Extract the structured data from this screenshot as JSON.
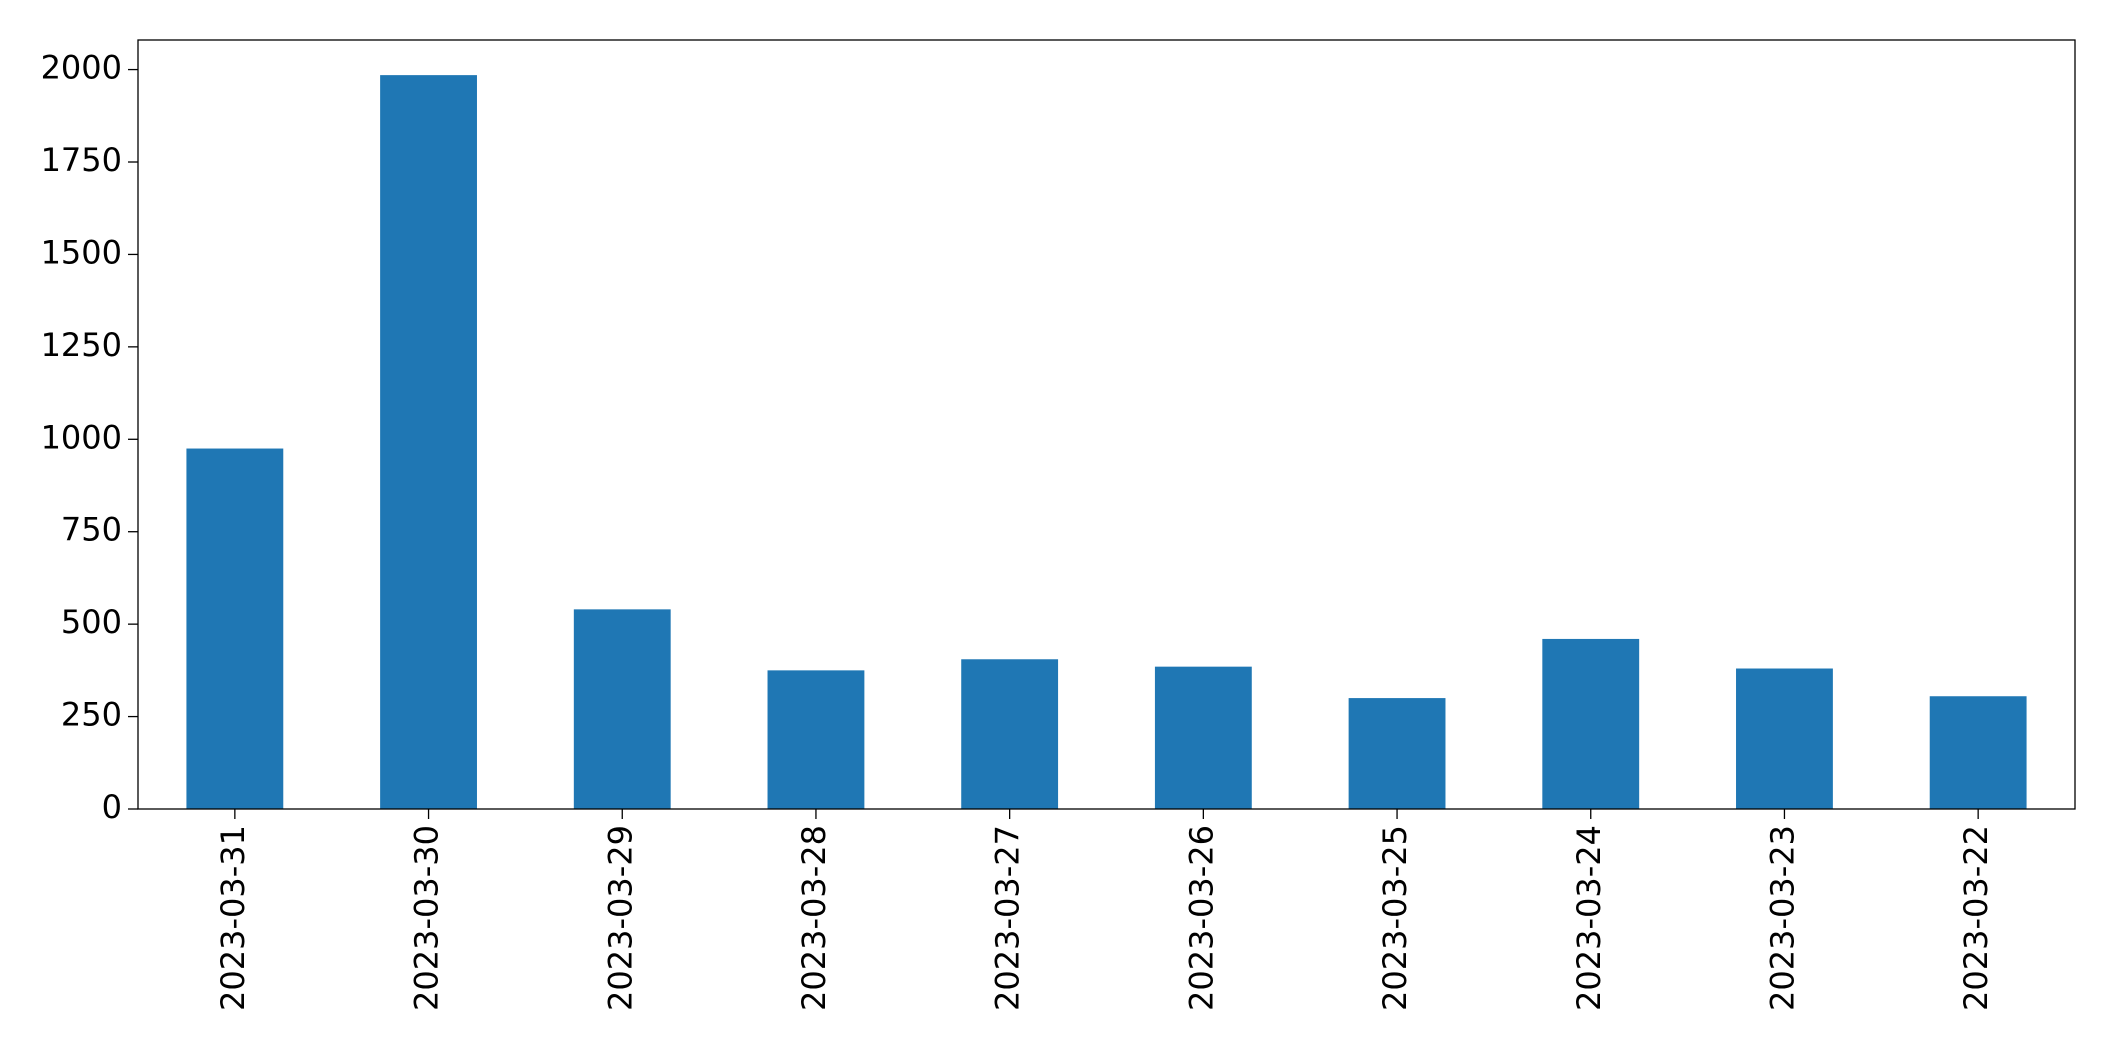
{
  "chart_data": {
    "type": "bar",
    "categories": [
      "2023-03-31",
      "2023-03-30",
      "2023-03-29",
      "2023-03-28",
      "2023-03-27",
      "2023-03-26",
      "2023-03-25",
      "2023-03-24",
      "2023-03-23",
      "2023-03-22"
    ],
    "values": [
      975,
      1985,
      540,
      375,
      405,
      385,
      300,
      460,
      380,
      305
    ],
    "color": "#1f77b4",
    "ylim": [
      0,
      2080
    ],
    "yticks": [
      0,
      250,
      500,
      750,
      1000,
      1250,
      1500,
      1750,
      2000
    ],
    "grid": false
  }
}
